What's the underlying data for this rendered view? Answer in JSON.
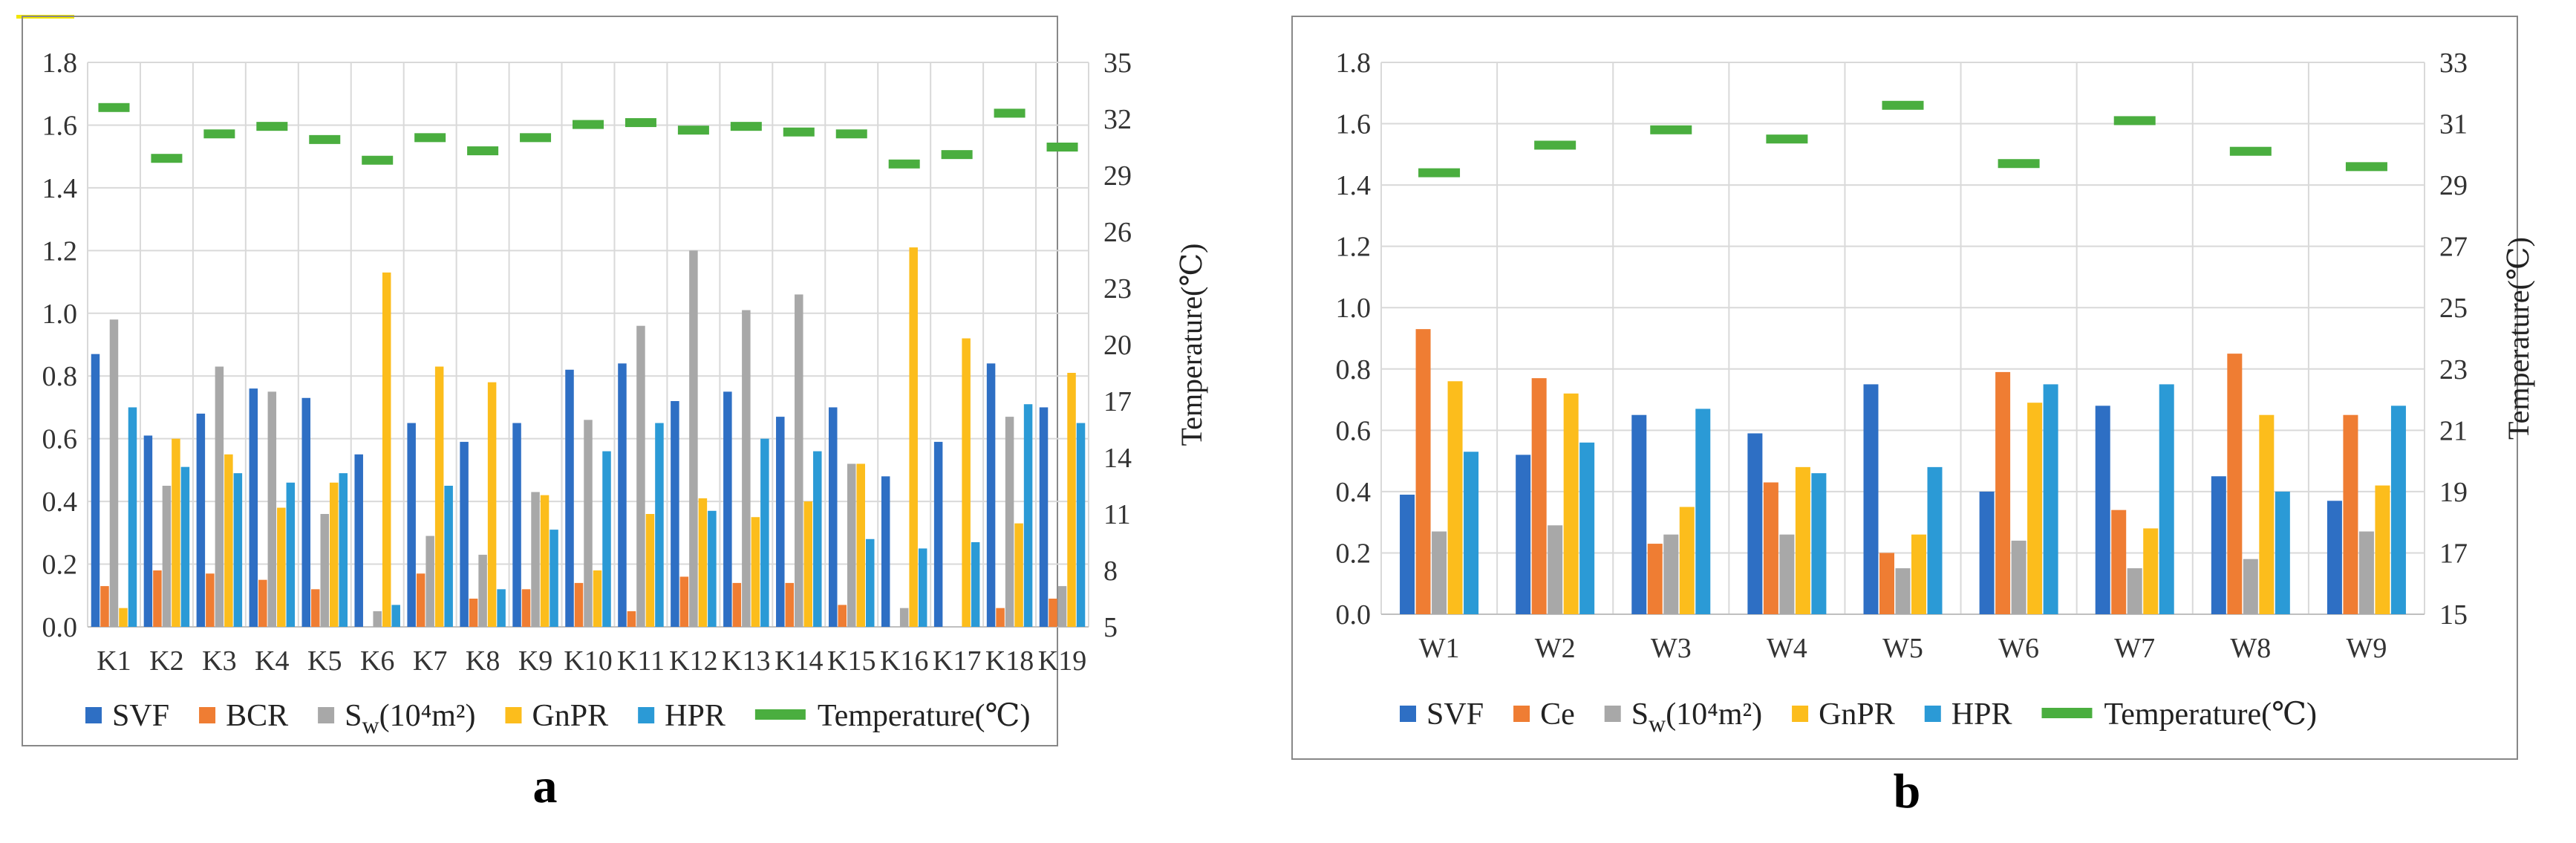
{
  "colors": {
    "SVF": "#2e6fc4",
    "BCR": "#ef7d33",
    "Ce": "#ef7d33",
    "Sw": "#a8a8a8",
    "GnPR": "#fcbd1c",
    "HPR": "#2b9ad6",
    "Temperature": "#4aae3f",
    "grid": "#d9d9d9",
    "frame": "#888888"
  },
  "chart_data": [
    {
      "type": "bar",
      "panel_label": "a",
      "categories": [
        "K1",
        "K2",
        "K3",
        "K4",
        "K5",
        "K6",
        "K7",
        "K8",
        "K9",
        "K10",
        "K11",
        "K12",
        "K13",
        "K14",
        "K15",
        "K16",
        "K17",
        "K18",
        "K19"
      ],
      "series": [
        {
          "name": "SVF",
          "key": "SVF",
          "values": [
            0.87,
            0.61,
            0.68,
            0.76,
            0.73,
            0.55,
            0.65,
            0.59,
            0.65,
            0.82,
            0.84,
            0.72,
            0.75,
            0.67,
            0.7,
            0.48,
            0.59,
            0.84,
            0.7
          ]
        },
        {
          "name": "BCR",
          "key": "BCR",
          "values": [
            0.13,
            0.18,
            0.17,
            0.15,
            0.12,
            0.0,
            0.17,
            0.09,
            0.12,
            0.14,
            0.05,
            0.16,
            0.14,
            0.14,
            0.07,
            0.0,
            0.0,
            0.06,
            0.09
          ]
        },
        {
          "name": "Sw(10⁴m²)",
          "key": "Sw",
          "values": [
            0.98,
            0.45,
            0.83,
            0.75,
            0.36,
            0.05,
            0.29,
            0.23,
            0.43,
            0.66,
            0.96,
            1.2,
            1.01,
            1.06,
            0.52,
            0.06,
            0.0,
            0.67,
            0.13
          ]
        },
        {
          "name": "GnPR",
          "key": "GnPR",
          "values": [
            0.06,
            0.6,
            0.55,
            0.38,
            0.46,
            1.13,
            0.83,
            0.78,
            0.42,
            0.18,
            0.36,
            0.41,
            0.35,
            0.4,
            0.52,
            1.21,
            0.92,
            0.33,
            0.81
          ]
        },
        {
          "name": "HPR",
          "key": "HPR",
          "values": [
            0.7,
            0.51,
            0.49,
            0.46,
            0.49,
            0.07,
            0.45,
            0.12,
            0.31,
            0.56,
            0.65,
            0.37,
            0.6,
            0.56,
            0.28,
            0.25,
            0.27,
            0.71,
            0.65
          ]
        }
      ],
      "temperature": {
        "name": "Temperature(℃)",
        "key": "Temperature",
        "values": [
          32.6,
          29.9,
          31.2,
          31.6,
          30.9,
          29.8,
          31.0,
          30.3,
          31.0,
          31.7,
          31.8,
          31.4,
          31.6,
          31.3,
          31.2,
          29.6,
          30.1,
          32.3,
          30.5
        ]
      },
      "ylim": [
        0,
        1.8
      ],
      "y_ticks": [
        "0.0",
        "0.2",
        "0.4",
        "0.6",
        "0.8",
        "1.0",
        "1.2",
        "1.4",
        "1.6",
        "1.8"
      ],
      "y2lim": [
        5,
        35
      ],
      "y2_ticks": [
        "5",
        "8",
        "11",
        "14",
        "17",
        "20",
        "23",
        "26",
        "29",
        "32",
        "35"
      ],
      "y2label": "Temperature(℃)",
      "legend": [
        {
          "key": "SVF",
          "label": "SVF",
          "kind": "square"
        },
        {
          "key": "BCR",
          "label": "BCR",
          "kind": "square"
        },
        {
          "key": "Sw",
          "label": "Sw(10⁴m²)",
          "kind": "square",
          "sub": true
        },
        {
          "key": "GnPR",
          "label": "GnPR",
          "kind": "square"
        },
        {
          "key": "HPR",
          "label": "HPR",
          "kind": "square"
        },
        {
          "key": "Temperature",
          "label": "Temperature(℃)",
          "kind": "line"
        }
      ],
      "legend_placement": "bottom"
    },
    {
      "type": "bar",
      "panel_label": "b",
      "categories": [
        "W1",
        "W2",
        "W3",
        "W4",
        "W5",
        "W6",
        "W7",
        "W8",
        "W9"
      ],
      "series": [
        {
          "name": "SVF",
          "key": "SVF",
          "values": [
            0.39,
            0.52,
            0.65,
            0.59,
            0.75,
            0.4,
            0.68,
            0.45,
            0.37
          ]
        },
        {
          "name": "Ce",
          "key": "Ce",
          "values": [
            0.93,
            0.77,
            0.23,
            0.43,
            0.2,
            0.79,
            0.34,
            0.85,
            0.65
          ]
        },
        {
          "name": "Sw(10⁴m²)",
          "key": "Sw",
          "values": [
            0.27,
            0.29,
            0.26,
            0.26,
            0.15,
            0.24,
            0.15,
            0.18,
            0.27
          ]
        },
        {
          "name": "GnPR",
          "key": "GnPR",
          "values": [
            0.76,
            0.72,
            0.35,
            0.48,
            0.26,
            0.69,
            0.28,
            0.65,
            0.42
          ]
        },
        {
          "name": "HPR",
          "key": "HPR",
          "values": [
            0.53,
            0.56,
            0.67,
            0.46,
            0.48,
            0.75,
            0.75,
            0.4,
            0.68
          ]
        }
      ],
      "temperature": {
        "name": "Temperature(℃)",
        "key": "Temperature",
        "values": [
          29.4,
          30.3,
          30.8,
          30.5,
          31.6,
          29.7,
          31.1,
          30.1,
          29.6
        ]
      },
      "ylim": [
        0,
        1.8
      ],
      "y_ticks": [
        "0.0",
        "0.2",
        "0.4",
        "0.6",
        "0.8",
        "1.0",
        "1.2",
        "1.4",
        "1.6",
        "1.8"
      ],
      "y2lim": [
        15,
        33
      ],
      "y2_ticks": [
        "15",
        "17",
        "19",
        "21",
        "23",
        "25",
        "27",
        "29",
        "31",
        "33"
      ],
      "y2label": "Temperature(℃)",
      "legend": [
        {
          "key": "SVF",
          "label": "SVF",
          "kind": "square"
        },
        {
          "key": "Ce",
          "label": "Ce",
          "kind": "square"
        },
        {
          "key": "Sw",
          "label": "Sw(10⁴m²)",
          "kind": "square",
          "sub": true
        },
        {
          "key": "GnPR",
          "label": "GnPR",
          "kind": "square"
        },
        {
          "key": "HPR",
          "label": "HPR",
          "kind": "square"
        },
        {
          "key": "Temperature",
          "label": "Temperature(℃)",
          "kind": "line"
        }
      ],
      "legend_placement": "bottom"
    }
  ]
}
